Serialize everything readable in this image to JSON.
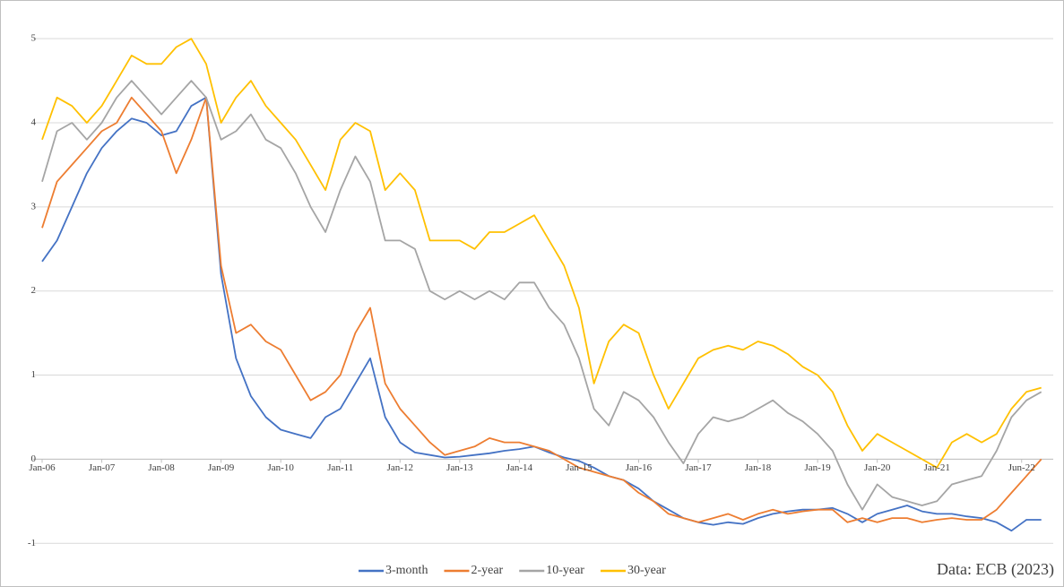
{
  "chart_data": {
    "type": "line",
    "source": "Data: ECB (2023)",
    "x": [
      2006,
      2006.25,
      2006.5,
      2006.75,
      2007,
      2007.25,
      2007.5,
      2007.75,
      2008,
      2008.25,
      2008.5,
      2008.75,
      2009,
      2009.25,
      2009.5,
      2009.75,
      2010,
      2010.25,
      2010.5,
      2010.75,
      2011,
      2011.25,
      2011.5,
      2011.75,
      2012,
      2012.25,
      2012.5,
      2012.75,
      2013,
      2013.25,
      2013.5,
      2013.75,
      2014,
      2014.25,
      2014.5,
      2014.75,
      2015,
      2015.25,
      2015.5,
      2015.75,
      2016,
      2016.25,
      2016.5,
      2016.75,
      2017,
      2017.25,
      2017.5,
      2017.75,
      2018,
      2018.25,
      2018.5,
      2018.75,
      2019,
      2019.25,
      2019.5,
      2019.75,
      2020,
      2020.25,
      2020.5,
      2020.75,
      2021,
      2021.25,
      2021.5,
      2021.75,
      2022,
      2022.25,
      2022.5,
      2022.75
    ],
    "series": [
      {
        "name": "3-month",
        "color": "#4472c4",
        "values": [
          2.35,
          2.6,
          3.0,
          3.4,
          3.7,
          3.9,
          4.05,
          4.0,
          3.85,
          3.9,
          4.2,
          4.3,
          2.2,
          1.2,
          0.75,
          0.5,
          0.35,
          0.3,
          0.25,
          0.5,
          0.6,
          0.9,
          1.2,
          0.5,
          0.2,
          0.08,
          0.05,
          0.02,
          0.03,
          0.05,
          0.07,
          0.1,
          0.12,
          0.15,
          0.08,
          0.02,
          -0.02,
          -0.1,
          -0.2,
          -0.25,
          -0.35,
          -0.5,
          -0.6,
          -0.7,
          -0.75,
          -0.78,
          -0.75,
          -0.77,
          -0.7,
          -0.65,
          -0.62,
          -0.6,
          -0.6,
          -0.58,
          -0.65,
          -0.75,
          -0.65,
          -0.6,
          -0.55,
          -0.62,
          -0.65,
          -0.65,
          -0.68,
          -0.7,
          -0.75,
          -0.85,
          -0.72,
          -0.72
        ]
      },
      {
        "name": "2-year",
        "color": "#ed7d31",
        "values": [
          2.75,
          3.3,
          3.5,
          3.7,
          3.9,
          4.0,
          4.3,
          4.1,
          3.9,
          3.4,
          3.8,
          4.3,
          2.3,
          1.5,
          1.6,
          1.4,
          1.3,
          1.0,
          0.7,
          0.8,
          1.0,
          1.5,
          1.8,
          0.9,
          0.6,
          0.4,
          0.2,
          0.05,
          0.1,
          0.15,
          0.25,
          0.2,
          0.2,
          0.15,
          0.1,
          0.0,
          -0.1,
          -0.15,
          -0.2,
          -0.25,
          -0.4,
          -0.5,
          -0.65,
          -0.7,
          -0.75,
          -0.7,
          -0.65,
          -0.72,
          -0.65,
          -0.6,
          -0.65,
          -0.62,
          -0.6,
          -0.6,
          -0.75,
          -0.7,
          -0.75,
          -0.7,
          -0.7,
          -0.75,
          -0.72,
          -0.7,
          -0.72,
          -0.72,
          -0.6,
          -0.4,
          -0.2,
          0.0
        ]
      },
      {
        "name": "10-year",
        "color": "#a5a5a5",
        "values": [
          3.3,
          3.9,
          4.0,
          3.8,
          4.0,
          4.3,
          4.5,
          4.3,
          4.1,
          4.3,
          4.5,
          4.3,
          3.8,
          3.9,
          4.1,
          3.8,
          3.7,
          3.4,
          3.0,
          2.7,
          3.2,
          3.6,
          3.3,
          2.6,
          2.6,
          2.5,
          2.0,
          1.9,
          2.0,
          1.9,
          2.0,
          1.9,
          2.1,
          2.1,
          1.8,
          1.6,
          1.2,
          0.6,
          0.4,
          0.8,
          0.7,
          0.5,
          0.2,
          -0.05,
          0.3,
          0.5,
          0.45,
          0.5,
          0.6,
          0.7,
          0.55,
          0.45,
          0.3,
          0.1,
          -0.3,
          -0.6,
          -0.3,
          -0.45,
          -0.5,
          -0.55,
          -0.5,
          -0.3,
          -0.25,
          -0.2,
          0.1,
          0.5,
          0.7,
          0.8
        ]
      },
      {
        "name": "30-year",
        "color": "#ffc000",
        "values": [
          3.8,
          4.3,
          4.2,
          4.0,
          4.2,
          4.5,
          4.8,
          4.7,
          4.7,
          4.9,
          5.0,
          4.7,
          4.0,
          4.3,
          4.5,
          4.2,
          4.0,
          3.8,
          3.5,
          3.2,
          3.8,
          4.0,
          3.9,
          3.2,
          3.4,
          3.2,
          2.6,
          2.6,
          2.6,
          2.5,
          2.7,
          2.7,
          2.8,
          2.9,
          2.6,
          2.3,
          1.8,
          0.9,
          1.4,
          1.6,
          1.5,
          1.0,
          0.6,
          0.9,
          1.2,
          1.3,
          1.35,
          1.3,
          1.4,
          1.35,
          1.25,
          1.1,
          1.0,
          0.8,
          0.4,
          0.1,
          0.3,
          0.2,
          0.1,
          0.0,
          -0.1,
          0.2,
          0.3,
          0.2,
          0.3,
          0.6,
          0.8,
          0.85
        ]
      }
    ],
    "xlim": [
      2006,
      2022.95
    ],
    "xticks": [
      {
        "value": 2006,
        "label": "Jan-06"
      },
      {
        "value": 2007,
        "label": "Jan-07"
      },
      {
        "value": 2008,
        "label": "Jan-08"
      },
      {
        "value": 2009,
        "label": "Jan-09"
      },
      {
        "value": 2010,
        "label": "Jan-10"
      },
      {
        "value": 2011,
        "label": "Jan-11"
      },
      {
        "value": 2012,
        "label": "Jan-12"
      },
      {
        "value": 2013,
        "label": "Jan-13"
      },
      {
        "value": 2014,
        "label": "Jan-14"
      },
      {
        "value": 2015,
        "label": "Jan-15"
      },
      {
        "value": 2016,
        "label": "Jan-16"
      },
      {
        "value": 2017,
        "label": "Jan-17"
      },
      {
        "value": 2018,
        "label": "Jan-18"
      },
      {
        "value": 2019,
        "label": "Jan-19"
      },
      {
        "value": 2020,
        "label": "Jan-20"
      },
      {
        "value": 2021,
        "label": "Jan-21"
      },
      {
        "value": 2022.42,
        "label": "Jun-22"
      }
    ],
    "ylim": [
      -1.2,
      5.3
    ],
    "yticks": [
      -1,
      0,
      1,
      2,
      3,
      4,
      5
    ],
    "grid": true,
    "legend": "bottom"
  }
}
